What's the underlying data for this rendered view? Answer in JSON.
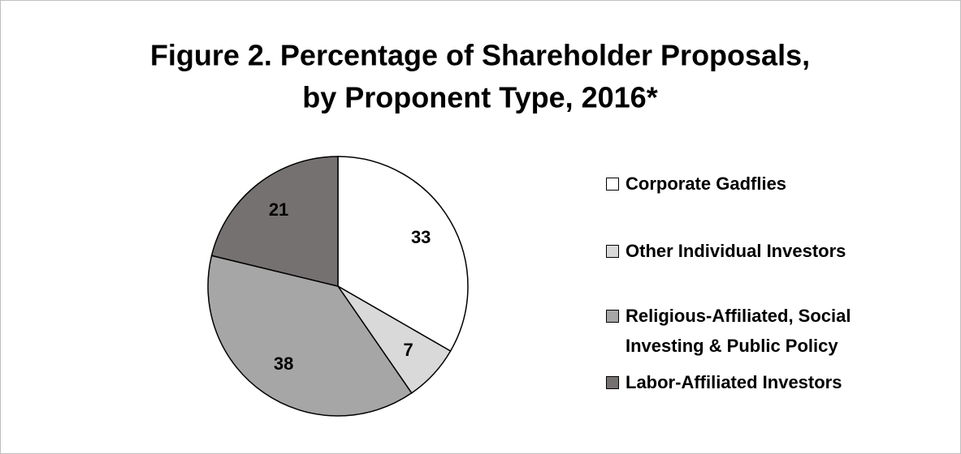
{
  "chart_data": {
    "type": "pie",
    "title": [
      "Figure 2. Percentage of Shareholder Proposals,",
      "by Proponent Type, 2016*"
    ],
    "categories": [
      "Corporate Gadflies",
      "Other Individual Investors",
      "Religious-Affiliated, Social Investing & Public Policy",
      "Labor-Affiliated Investors"
    ],
    "values": [
      33,
      7,
      38,
      21
    ],
    "colors": [
      "#ffffff",
      "#d9d9d9",
      "#a6a6a6",
      "#767171"
    ],
    "legend": "right"
  }
}
